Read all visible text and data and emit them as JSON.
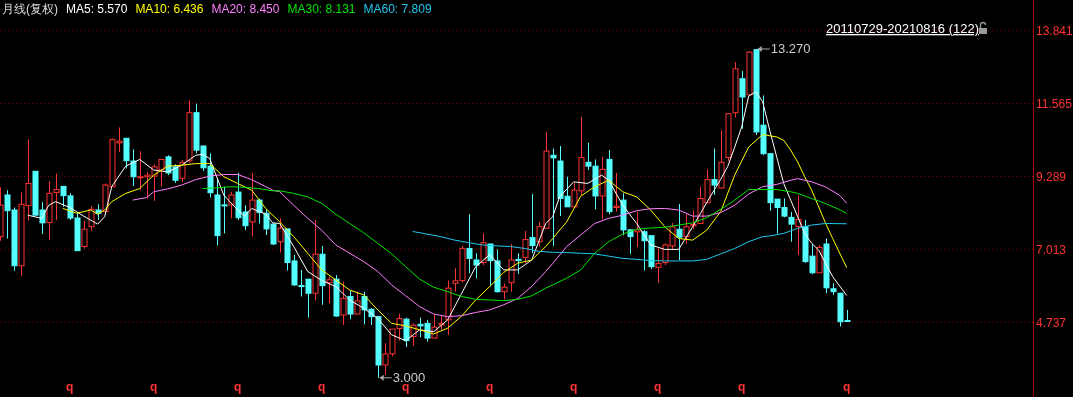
{
  "chart_data": {
    "type": "candlestick",
    "title": "月线(复权)",
    "legend": "top left",
    "grid": true,
    "annotations": [
      "20110729-20210816 (122)",
      "13.270",
      "3.000"
    ],
    "categories": [
      null,
      null,
      null,
      null,
      null,
      null,
      null,
      null,
      null,
      null,
      "q",
      null,
      null,
      null,
      null,
      null,
      null,
      null,
      null,
      null,
      null,
      null,
      "q",
      null,
      null,
      null,
      null,
      null,
      null,
      null,
      null,
      null,
      null,
      null,
      "q",
      null,
      null,
      null,
      null,
      null,
      null,
      null,
      null,
      null,
      null,
      null,
      "q",
      null,
      null,
      null,
      null,
      null,
      null,
      null,
      null,
      null,
      null,
      null,
      "q",
      null,
      null,
      null,
      null,
      null,
      null,
      null,
      null,
      null,
      null,
      null,
      "q",
      null,
      null,
      null,
      null,
      null,
      null,
      null,
      null,
      null,
      null,
      null,
      "q",
      null,
      null,
      null,
      null,
      null,
      null,
      null,
      null,
      null,
      null,
      null,
      "q",
      null,
      null,
      null,
      null,
      null,
      null,
      null,
      null,
      null,
      null,
      null,
      "q",
      null,
      null,
      null,
      null,
      null,
      null,
      null,
      null,
      null,
      null,
      null,
      null,
      null,
      null,
      "q"
    ],
    "ylim": [
      2.4,
      14.8
    ],
    "yticks": [
      4.737,
      7.013,
      9.289,
      11.565,
      13.841
    ],
    "ohlc": [
      [
        7.41,
        8.95,
        7.28,
        8.39
      ],
      [
        8.71,
        8.86,
        7.35,
        8.22
      ],
      [
        8.24,
        8.32,
        6.34,
        6.5
      ],
      [
        6.5,
        8.79,
        6.19,
        8.42
      ],
      [
        8.38,
        10.45,
        7.91,
        9.07
      ],
      [
        9.45,
        9.45,
        8.08,
        8.08
      ],
      [
        8.24,
        8.49,
        7.49,
        7.84
      ],
      [
        7.85,
        9.14,
        7.3,
        8.76
      ],
      [
        8.79,
        9.38,
        7.93,
        8.88
      ],
      [
        8.98,
        8.98,
        8.34,
        8.69
      ],
      [
        8.68,
        8.76,
        7.93,
        7.99
      ],
      [
        7.99,
        8.14,
        6.97,
        6.97
      ],
      [
        7.1,
        7.91,
        7.04,
        7.64
      ],
      [
        7.72,
        8.36,
        7.59,
        8.26
      ],
      [
        8.24,
        8.42,
        7.93,
        8.14
      ],
      [
        8.19,
        9.07,
        8.19,
        9.02
      ],
      [
        8.97,
        10.47,
        8.97,
        10.44
      ],
      [
        10.34,
        10.82,
        10.06,
        10.39
      ],
      [
        10.48,
        10.48,
        9.54,
        9.78
      ],
      [
        9.77,
        10.13,
        8.99,
        9.28
      ],
      [
        9.25,
        10.08,
        8.86,
        9.28
      ],
      [
        9.28,
        9.43,
        8.6,
        9.33
      ],
      [
        9.3,
        9.67,
        8.53,
        9.59
      ],
      [
        9.49,
        9.82,
        8.97,
        9.82
      ],
      [
        9.9,
        9.95,
        9.33,
        9.4
      ],
      [
        9.59,
        9.67,
        9.09,
        9.17
      ],
      [
        9.23,
        9.8,
        9.12,
        9.73
      ],
      [
        9.78,
        11.67,
        9.72,
        11.28
      ],
      [
        11.28,
        11.56,
        10.01,
        10.11
      ],
      [
        10.24,
        10.24,
        9.46,
        9.56
      ],
      [
        9.61,
        10.01,
        8.63,
        8.78
      ],
      [
        8.71,
        9.23,
        7.13,
        7.44
      ],
      [
        8.4,
        8.97,
        7.51,
        8.39
      ],
      [
        8.4,
        8.81,
        7.98,
        8.71
      ],
      [
        8.8,
        9.4,
        7.93,
        8.0
      ],
      [
        8.18,
        8.39,
        7.61,
        7.75
      ],
      [
        7.87,
        9.4,
        7.41,
        8.55
      ],
      [
        8.55,
        8.6,
        7.82,
        8.16
      ],
      [
        8.14,
        8.26,
        7.46,
        7.65
      ],
      [
        7.8,
        7.84,
        7.15,
        7.18
      ],
      [
        7.25,
        7.98,
        6.91,
        7.67
      ],
      [
        7.65,
        7.65,
        6.35,
        6.6
      ],
      [
        6.65,
        6.84,
        5.87,
        5.9
      ],
      [
        5.88,
        6.37,
        5.54,
        5.87
      ],
      [
        6.08,
        6.08,
        4.88,
        5.64
      ],
      [
        5.64,
        7.93,
        5.41,
        6.86
      ],
      [
        6.86,
        7.12,
        5.28,
        5.88
      ],
      [
        5.97,
        6.16,
        5.33,
        6.06
      ],
      [
        6.08,
        6.21,
        4.91,
        4.93
      ],
      [
        4.96,
        6.0,
        4.65,
        5.48
      ],
      [
        5.54,
        5.74,
        4.83,
        4.99
      ],
      [
        4.99,
        5.69,
        4.99,
        5.4
      ],
      [
        5.54,
        5.69,
        4.67,
        5.12
      ],
      [
        5.14,
        5.17,
        4.65,
        4.91
      ],
      [
        4.91,
        4.91,
        3.0,
        3.4
      ],
      [
        3.4,
        4.08,
        3.09,
        3.74
      ],
      [
        3.75,
        4.52,
        3.67,
        4.52
      ],
      [
        4.54,
        5.0,
        4.16,
        4.85
      ],
      [
        4.83,
        4.88,
        3.96,
        4.16
      ],
      [
        4.29,
        4.7,
        4.0,
        4.64
      ],
      [
        4.67,
        4.88,
        4.27,
        4.62
      ],
      [
        4.7,
        4.81,
        4.13,
        4.24
      ],
      [
        4.24,
        4.96,
        4.24,
        4.58
      ],
      [
        4.65,
        4.96,
        4.5,
        4.7
      ],
      [
        4.81,
        6.04,
        4.34,
        5.8
      ],
      [
        5.95,
        6.42,
        5.69,
        6.03
      ],
      [
        6.04,
        7.12,
        5.97,
        7.04
      ],
      [
        7.04,
        8.11,
        6.26,
        6.73
      ],
      [
        6.68,
        6.89,
        6.11,
        6.52
      ],
      [
        6.6,
        7.51,
        6.52,
        7.22
      ],
      [
        7.18,
        7.18,
        5.85,
        6.66
      ],
      [
        6.65,
        7.01,
        5.66,
        5.69
      ],
      [
        5.69,
        5.95,
        5.45,
        5.83
      ],
      [
        5.97,
        7.18,
        5.69,
        6.68
      ],
      [
        6.7,
        6.89,
        6.24,
        6.66
      ],
      [
        6.76,
        7.59,
        6.58,
        7.32
      ],
      [
        7.38,
        8.74,
        6.89,
        7.13
      ],
      [
        7.25,
        7.87,
        7.1,
        7.72
      ],
      [
        7.67,
        10.68,
        7.67,
        10.08
      ],
      [
        9.95,
        10.16,
        7.12,
        9.87
      ],
      [
        9.77,
        10.24,
        8.05,
        8.6
      ],
      [
        8.67,
        9.28,
        8.34,
        8.34
      ],
      [
        8.34,
        9.09,
        8.34,
        8.86
      ],
      [
        8.84,
        11.15,
        8.71,
        9.88
      ],
      [
        9.73,
        10.34,
        9.49,
        9.61
      ],
      [
        9.61,
        9.82,
        8.26,
        8.68
      ],
      [
        8.68,
        9.9,
        7.95,
        9.51
      ],
      [
        9.82,
        10.11,
        8.11,
        8.19
      ],
      [
        8.32,
        9.4,
        8.19,
        8.36
      ],
      [
        8.55,
        8.76,
        7.46,
        7.62
      ],
      [
        7.62,
        7.64,
        6.87,
        7.41
      ],
      [
        7.56,
        8.19,
        7.08,
        7.62
      ],
      [
        7.56,
        7.62,
        6.35,
        7.28
      ],
      [
        7.44,
        7.44,
        6.39,
        6.47
      ],
      [
        6.45,
        7.04,
        5.97,
        6.57
      ],
      [
        6.6,
        7.2,
        6.52,
        7.15
      ],
      [
        7.12,
        7.84,
        7.01,
        7.72
      ],
      [
        7.64,
        8.43,
        6.68,
        7.39
      ],
      [
        7.41,
        8.11,
        7.18,
        7.72
      ],
      [
        7.75,
        8.22,
        7.64,
        7.79
      ],
      [
        7.82,
        8.97,
        7.82,
        8.6
      ],
      [
        8.47,
        9.51,
        8.45,
        9.19
      ],
      [
        9.19,
        10.16,
        8.71,
        9.02
      ],
      [
        8.93,
        10.73,
        8.91,
        9.73
      ],
      [
        9.88,
        11.25,
        9.78,
        11.25
      ],
      [
        11.28,
        12.86,
        11.13,
        12.65
      ],
      [
        12.34,
        12.58,
        10.78,
        11.77
      ],
      [
        11.84,
        13.2,
        11.84,
        13.17
      ],
      [
        13.25,
        13.27,
        10.58,
        10.68
      ],
      [
        10.89,
        11.82,
        9.95,
        10.0
      ],
      [
        10.0,
        10.0,
        8.22,
        8.47
      ],
      [
        8.58,
        8.58,
        7.51,
        8.32
      ],
      [
        8.32,
        8.6,
        8.01,
        8.05
      ],
      [
        8.01,
        8.18,
        7.25,
        7.8
      ],
      [
        7.72,
        8.7,
        6.83,
        7.95
      ],
      [
        7.72,
        7.93,
        6.59,
        6.63
      ],
      [
        6.8,
        7.18,
        6.24,
        6.28
      ],
      [
        6.28,
        7.14,
        6.28,
        7.07
      ],
      [
        7.18,
        7.35,
        5.64,
        5.81
      ],
      [
        5.78,
        5.95,
        5.59,
        5.69
      ],
      [
        5.64,
        5.66,
        4.6,
        4.75
      ],
      [
        4.79,
        5.12,
        4.75,
        4.78
      ]
    ],
    "series": [
      {
        "type": "line",
        "name": "MA5: 5.570",
        "color": "#ffffff",
        "values": [
          null,
          null,
          null,
          null,
          8.08,
          null,
          7.98,
          8.39,
          8.5,
          null,
          8.32,
          null,
          8.05,
          null,
          7.8,
          8.03,
          8.97,
          null,
          9.61,
          null,
          9.82,
          null,
          9.49,
          null,
          9.43,
          null,
          9.64,
          null,
          9.95,
          9.98,
          9.85,
          null,
          8.71,
          null,
          8.24,
          8.05,
          8.29,
          null,
          8.11,
          7.84,
          7.82,
          null,
          7.1,
          null,
          6.32,
          null,
          6.04,
          null,
          5.85,
          null,
          5.43,
          null,
          5.17,
          null,
          4.86,
          null,
          4.34,
          null,
          4.16,
          null,
          4.5,
          null,
          4.44,
          null,
          4.81,
          null,
          5.64,
          null,
          6.47,
          null,
          6.84,
          null,
          6.37,
          null,
          6.37,
          null,
          6.68,
          null,
          7.82,
          8.03,
          8.66,
          null,
          9.12,
          null,
          9.07,
          null,
          9.33,
          9.17,
          null,
          8.39,
          null,
          7.82,
          null,
          7.15,
          null,
          7.01,
          null,
          7.01,
          null,
          7.72,
          null,
          8.47,
          null,
          9.2,
          9.6,
          10.2,
          10.84,
          11.8,
          11.93,
          11.62,
          10.73,
          9.9,
          9.07,
          8.55,
          8.03,
          7.51,
          7.2,
          6.99,
          6.57,
          6.16,
          null,
          5.57
        ]
      },
      {
        "type": "line",
        "name": "MA10: 6.436",
        "color": "#ffff00",
        "values": [
          null,
          null,
          null,
          null,
          null,
          null,
          null,
          null,
          null,
          8.29,
          null,
          8.14,
          null,
          8.24,
          8.11,
          8.24,
          8.5,
          null,
          8.76,
          null,
          8.91,
          null,
          9.33,
          null,
          9.61,
          null,
          9.64,
          null,
          9.69,
          null,
          9.69,
          null,
          9.28,
          null,
          9.07,
          null,
          8.86,
          null,
          8.29,
          null,
          7.87,
          null,
          7.41,
          null,
          6.89,
          null,
          6.37,
          null,
          6.06,
          null,
          5.74,
          null,
          5.59,
          null,
          5.12,
          null,
          4.7,
          null,
          4.62,
          null,
          4.5,
          null,
          4.37,
          null,
          4.55,
          null,
          4.93,
          null,
          5.43,
          null,
          5.85,
          null,
          6.29,
          null,
          6.58,
          null,
          6.68,
          null,
          7.1,
          7.35,
          null,
          7.87,
          null,
          8.67,
          null,
          8.97,
          null,
          9.17,
          null,
          8.81,
          null,
          8.65,
          null,
          8.24,
          null,
          7.72,
          null,
          7.35,
          null,
          7.3,
          null,
          7.61,
          null,
          8.19,
          null,
          9.33,
          null,
          10.21,
          null,
          10.6,
          null,
          10.52,
          10.42,
          10.11,
          9.74,
          9.28,
          8.86,
          8.34,
          7.82,
          7.35,
          null,
          6.44
        ]
      },
      {
        "type": "line",
        "name": "MA20: 8.450",
        "color": "#ff80ff",
        "values": [
          null,
          null,
          null,
          null,
          null,
          null,
          null,
          null,
          null,
          null,
          null,
          null,
          null,
          null,
          null,
          null,
          null,
          null,
          null,
          8.55,
          null,
          8.63,
          8.81,
          null,
          8.9,
          null,
          9.02,
          null,
          9.19,
          null,
          9.3,
          null,
          9.35,
          null,
          9.35,
          null,
          9.19,
          null,
          8.97,
          8.86,
          8.81,
          null,
          8.39,
          null,
          7.98,
          null,
          7.61,
          null,
          7.15,
          null,
          6.89,
          null,
          6.63,
          null,
          6.32,
          null,
          5.9,
          null,
          5.56,
          null,
          5.22,
          null,
          4.99,
          null,
          4.91,
          null,
          4.94,
          null,
          5.04,
          null,
          5.12,
          null,
          5.28,
          null,
          5.48,
          null,
          5.85,
          null,
          6.32,
          6.57,
          null,
          7.1,
          null,
          7.46,
          null,
          7.82,
          null,
          7.98,
          null,
          8.08,
          null,
          8.22,
          null,
          8.28,
          null,
          8.29,
          null,
          8.24,
          null,
          8.05,
          null,
          8.05,
          null,
          8.16,
          null,
          8.39,
          null,
          8.74,
          null,
          8.97,
          null,
          9.04,
          null,
          9.17,
          9.22,
          null,
          9.12,
          null,
          8.96,
          null,
          8.7,
          8.45
        ]
      },
      {
        "type": "line",
        "name": "MA30: 8.131",
        "color": "#00e600",
        "values": [
          null,
          null,
          null,
          null,
          null,
          null,
          null,
          null,
          null,
          null,
          null,
          null,
          null,
          null,
          null,
          null,
          null,
          null,
          null,
          null,
          null,
          null,
          null,
          null,
          null,
          null,
          null,
          null,
          null,
          8.91,
          null,
          8.93,
          null,
          8.97,
          null,
          8.95,
          null,
          8.91,
          null,
          8.84,
          8.84,
          null,
          8.76,
          null,
          8.65,
          null,
          8.45,
          null,
          8.11,
          null,
          7.82,
          null,
          7.53,
          null,
          7.2,
          null,
          6.87,
          null,
          6.47,
          null,
          6.08,
          null,
          5.83,
          null,
          5.69,
          null,
          5.54,
          null,
          5.45,
          null,
          5.43,
          null,
          5.41,
          null,
          5.45,
          null,
          5.56,
          null,
          5.8,
          5.9,
          null,
          6.11,
          null,
          6.37,
          null,
          6.89,
          null,
          7.25,
          null,
          7.49,
          null,
          7.64,
          null,
          7.68,
          null,
          7.7,
          null,
          7.77,
          null,
          7.84,
          null,
          8.0,
          null,
          8.26,
          null,
          8.55,
          null,
          8.88,
          null,
          8.88,
          null,
          8.88,
          null,
          8.81,
          8.76,
          null,
          8.6,
          null,
          8.44,
          null,
          8.25,
          8.13
        ]
      },
      {
        "type": "line",
        "name": "MA60: 7.809",
        "color": "#20c8f0",
        "values": [
          null,
          null,
          null,
          null,
          null,
          null,
          null,
          null,
          null,
          null,
          null,
          null,
          null,
          null,
          null,
          null,
          null,
          null,
          null,
          null,
          null,
          null,
          null,
          null,
          null,
          null,
          null,
          null,
          null,
          null,
          null,
          null,
          null,
          null,
          null,
          null,
          null,
          null,
          null,
          null,
          null,
          null,
          null,
          null,
          null,
          null,
          null,
          null,
          null,
          null,
          null,
          null,
          null,
          null,
          null,
          null,
          null,
          null,
          null,
          7.57,
          null,
          7.49,
          null,
          7.41,
          null,
          7.3,
          null,
          7.22,
          null,
          7.15,
          null,
          7.12,
          null,
          7.1,
          null,
          7.04,
          null,
          6.95,
          null,
          6.92,
          null,
          6.91,
          null,
          6.89,
          null,
          6.87,
          null,
          6.8,
          null,
          6.73,
          null,
          6.7,
          null,
          6.66,
          null,
          6.65,
          null,
          6.65,
          null,
          6.65,
          null,
          6.7,
          null,
          6.87,
          null,
          7.04,
          null,
          7.25,
          null,
          7.41,
          7.43,
          null,
          7.51,
          null,
          7.67,
          null,
          7.77,
          null,
          7.82,
          null,
          null,
          7.81
        ]
      }
    ]
  }
}
